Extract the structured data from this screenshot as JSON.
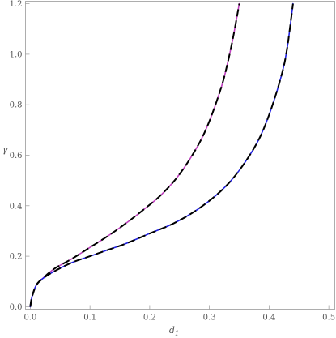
{
  "chart_data": {
    "type": "line",
    "title": "",
    "xlabel": "d",
    "xlabel_sub": "1",
    "ylabel": "γ",
    "xlim": [
      -0.008,
      0.51
    ],
    "ylim": [
      -0.01,
      1.21
    ],
    "x_ticks": [
      {
        "value": 0.0,
        "label": "0.0"
      },
      {
        "value": 0.1,
        "label": "0.1"
      },
      {
        "value": 0.2,
        "label": "0.2"
      },
      {
        "value": 0.3,
        "label": "0.3"
      },
      {
        "value": 0.4,
        "label": "0.4"
      },
      {
        "value": 0.5,
        "label": "0.5"
      }
    ],
    "y_ticks": [
      {
        "value": 0.0,
        "label": "0.0"
      },
      {
        "value": 0.2,
        "label": "0.2"
      },
      {
        "value": 0.4,
        "label": "0.4"
      },
      {
        "value": 0.6,
        "label": "0.6"
      },
      {
        "value": 0.8,
        "label": "0.8"
      },
      {
        "value": 1.0,
        "label": "1.0"
      },
      {
        "value": 1.2,
        "label": "1.2"
      }
    ],
    "grid": false,
    "legend": "none",
    "series": [
      {
        "color": "#c040c0",
        "style": "solid",
        "x": [
          0.0,
          0.003,
          0.01,
          0.02,
          0.04,
          0.07,
          0.1,
          0.13,
          0.16,
          0.19,
          0.22,
          0.25,
          0.28,
          0.3,
          0.32,
          0.33,
          0.34,
          0.35
        ],
        "y": [
          0.0,
          0.04,
          0.085,
          0.11,
          0.15,
          0.19,
          0.235,
          0.28,
          0.33,
          0.385,
          0.445,
          0.525,
          0.635,
          0.735,
          0.87,
          0.96,
          1.07,
          1.2
        ]
      },
      {
        "color": "#000000",
        "style": "dashed",
        "x": [
          0.0,
          0.003,
          0.01,
          0.02,
          0.04,
          0.07,
          0.1,
          0.13,
          0.16,
          0.19,
          0.22,
          0.25,
          0.28,
          0.3,
          0.32,
          0.33,
          0.34,
          0.35
        ],
        "y": [
          0.0,
          0.04,
          0.085,
          0.11,
          0.15,
          0.19,
          0.235,
          0.28,
          0.33,
          0.385,
          0.445,
          0.525,
          0.635,
          0.735,
          0.87,
          0.96,
          1.07,
          1.2
        ]
      },
      {
        "color": "#2020e0",
        "style": "solid",
        "x": [
          0.0,
          0.003,
          0.01,
          0.02,
          0.04,
          0.07,
          0.1,
          0.13,
          0.16,
          0.2,
          0.24,
          0.28,
          0.32,
          0.35,
          0.38,
          0.4,
          0.42,
          0.43,
          0.44
        ],
        "y": [
          0.0,
          0.04,
          0.085,
          0.11,
          0.14,
          0.175,
          0.2,
          0.225,
          0.25,
          0.29,
          0.33,
          0.385,
          0.46,
          0.54,
          0.65,
          0.76,
          0.91,
          1.02,
          1.2
        ]
      },
      {
        "color": "#000000",
        "style": "dashed",
        "x": [
          0.0,
          0.003,
          0.01,
          0.02,
          0.04,
          0.07,
          0.1,
          0.13,
          0.16,
          0.2,
          0.24,
          0.28,
          0.32,
          0.35,
          0.38,
          0.4,
          0.42,
          0.43,
          0.44
        ],
        "y": [
          0.0,
          0.04,
          0.085,
          0.11,
          0.14,
          0.175,
          0.2,
          0.225,
          0.25,
          0.29,
          0.33,
          0.385,
          0.46,
          0.54,
          0.65,
          0.76,
          0.91,
          1.02,
          1.2
        ]
      }
    ]
  }
}
